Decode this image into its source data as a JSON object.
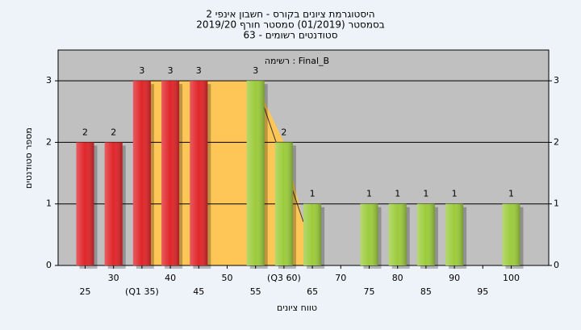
{
  "chart_data": {
    "type": "bar",
    "title": "היסטוגרמת ציונים בקורס - חשבון אינפי 2",
    "subtitle": "בסמסטר  (01/2019)  סמסטר חורף 2019/20",
    "subtitle2": "סטודנטים רשומים - 63",
    "annotation": "רשימה : Final_B",
    "x_label": "טווח ציונים",
    "y_label": "מספר סטודנטים",
    "categories": [
      "25",
      "30",
      "(Q1 35)",
      "40",
      "45",
      "50",
      "55",
      "(Q3 60)",
      "65",
      "70",
      "75",
      "80",
      "85",
      "90",
      "95",
      "100"
    ],
    "values": [
      2,
      2,
      3,
      3,
      3,
      0,
      3,
      2,
      1,
      0,
      1,
      1,
      1,
      1,
      0,
      1
    ],
    "colors": [
      "#e0262a",
      "#e0262a",
      "#e0262a",
      "#e0262a",
      "#e0262a",
      "#e0262a",
      "#9ccc3c",
      "#9ccc3c",
      "#9ccc3c",
      "#9ccc3c",
      "#9ccc3c",
      "#9ccc3c",
      "#9ccc3c",
      "#9ccc3c",
      "#9ccc3c",
      "#9ccc3c"
    ],
    "ylim": [
      0,
      3.5
    ],
    "yticks": [
      0,
      1,
      2,
      3
    ],
    "grid": true
  }
}
